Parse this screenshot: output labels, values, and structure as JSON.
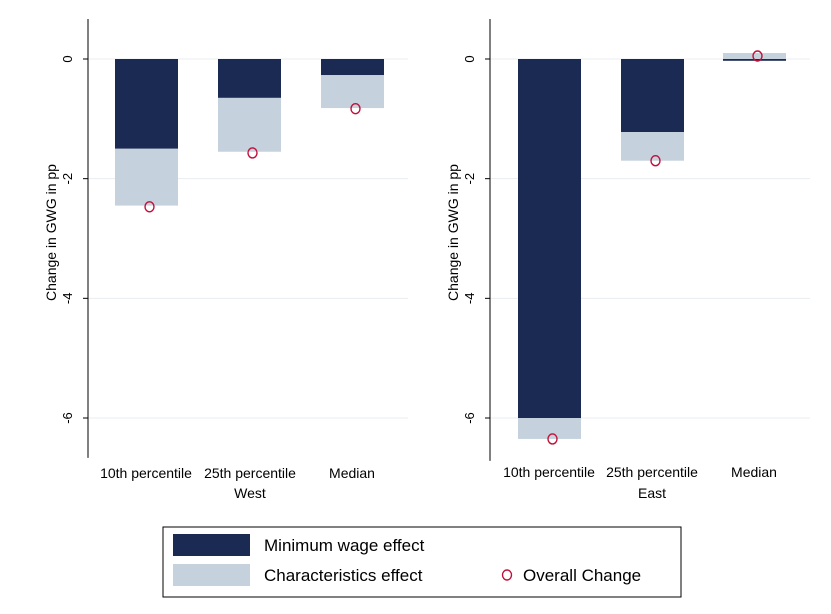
{
  "colors": {
    "min_wage": "#1a2a52",
    "characteristics": "#c5d1dc",
    "overall_marker": "#c0103a",
    "grid": "#e8edf0",
    "axis": "#000000"
  },
  "chart_data": [
    {
      "type": "bar",
      "panel": "West",
      "xlabel": "West",
      "ylabel": "Change in GWG in pp",
      "ylim": [
        -6.6,
        0.3
      ],
      "yticks": [
        0,
        -2,
        -4,
        -6
      ],
      "categories": [
        "10th percentile",
        "25th percentile",
        "Median"
      ],
      "series": [
        {
          "name": "Minimum wage effect",
          "values": [
            -1.5,
            -0.65,
            -0.27
          ]
        },
        {
          "name": "Characteristics effect",
          "values": [
            -0.95,
            -0.9,
            -0.55
          ]
        },
        {
          "name": "Overall Change",
          "values": [
            -2.47,
            -1.57,
            -0.83
          ]
        }
      ],
      "grid": true
    },
    {
      "type": "bar",
      "panel": "East",
      "xlabel": "East",
      "ylabel": "Change in GWG in pp",
      "ylim": [
        -6.65,
        0.3
      ],
      "yticks": [
        0,
        -2,
        -4,
        -6
      ],
      "categories": [
        "10th percentile",
        "25th percentile",
        "Median"
      ],
      "series": [
        {
          "name": "Minimum wage effect",
          "values": [
            -6.0,
            -1.22,
            -0.03
          ]
        },
        {
          "name": "Characteristics effect",
          "values": [
            -0.35,
            -0.48,
            0.1
          ]
        },
        {
          "name": "Overall Change",
          "values": [
            -6.35,
            -1.7,
            0.05
          ]
        }
      ],
      "grid": true
    }
  ],
  "legend": {
    "placement": "bottom-center",
    "items": [
      {
        "label": "Minimum wage effect",
        "swatch": "bar",
        "color": "#1a2a52"
      },
      {
        "label": "Characteristics effect",
        "swatch": "bar",
        "color": "#c5d1dc"
      },
      {
        "label": "Overall Change",
        "swatch": "marker",
        "color": "#c0103a"
      }
    ]
  }
}
